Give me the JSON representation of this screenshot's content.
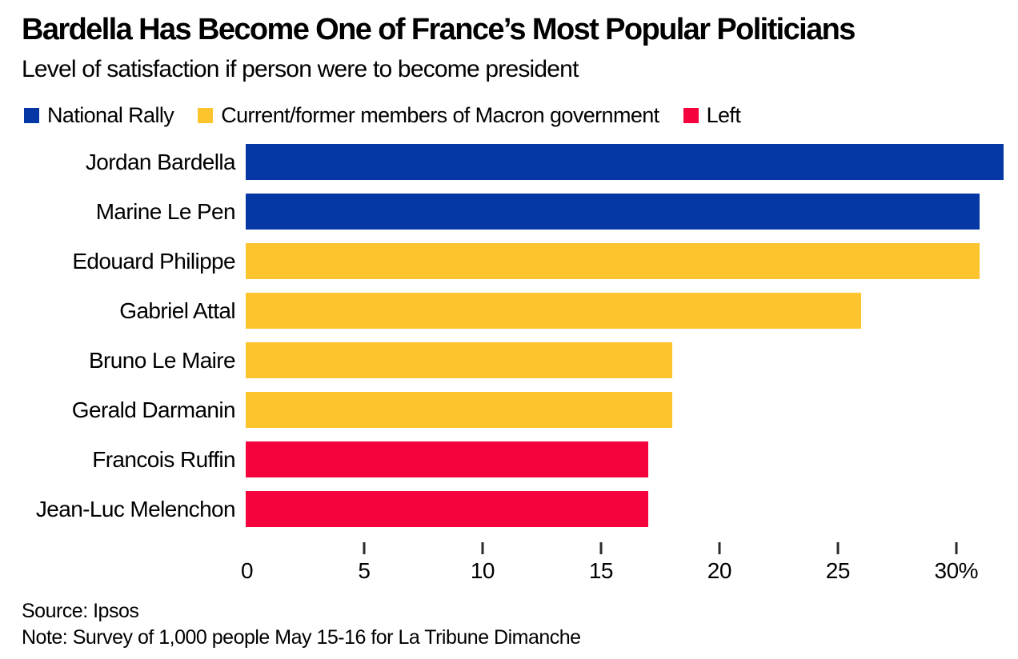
{
  "chart_data": {
    "type": "bar",
    "orientation": "horizontal",
    "title": "Bardella Has Become One of France’s Most Popular Politicians",
    "subtitle": "Level of satisfaction if person were to become president",
    "unit": "%",
    "xlim": [
      0,
      32
    ],
    "grid": false,
    "legend_position": "top",
    "legend": [
      {
        "label": "National Rally",
        "color": "#0538A4"
      },
      {
        "label": "Current/former members of Macron government",
        "color": "#FEC42E"
      },
      {
        "label": "Left",
        "color": "#F4033C"
      }
    ],
    "bars": [
      {
        "label": "Jordan Bardella",
        "value": 32,
        "group": "National Rally",
        "legend_index": 0
      },
      {
        "label": "Marine Le Pen",
        "value": 31,
        "group": "National Rally",
        "legend_index": 0
      },
      {
        "label": "Edouard Philippe",
        "value": 31,
        "group": "Current/former members of Macron government",
        "legend_index": 1
      },
      {
        "label": "Gabriel Attal",
        "value": 26,
        "group": "Current/former members of Macron government",
        "legend_index": 1
      },
      {
        "label": "Bruno Le Maire",
        "value": 18,
        "group": "Current/former members of Macron government",
        "legend_index": 1
      },
      {
        "label": "Gerald Darmanin",
        "value": 18,
        "group": "Current/former members of Macron government",
        "legend_index": 1
      },
      {
        "label": "Francois Ruffin",
        "value": 17,
        "group": "Left",
        "legend_index": 2
      },
      {
        "label": "Jean-Luc Melenchon",
        "value": 17,
        "group": "Left",
        "legend_index": 2
      }
    ],
    "x_ticks": [
      {
        "value": 0,
        "label": "0"
      },
      {
        "value": 5,
        "label": "5"
      },
      {
        "value": 10,
        "label": "10"
      },
      {
        "value": 15,
        "label": "15"
      },
      {
        "value": 20,
        "label": "20"
      },
      {
        "value": 25,
        "label": "25"
      },
      {
        "value": 30,
        "label": "30%"
      }
    ],
    "source": "Source: Ipsos",
    "note": "Note: Survey of 1,000 people May 15-16 for La Tribune Dimanche"
  }
}
